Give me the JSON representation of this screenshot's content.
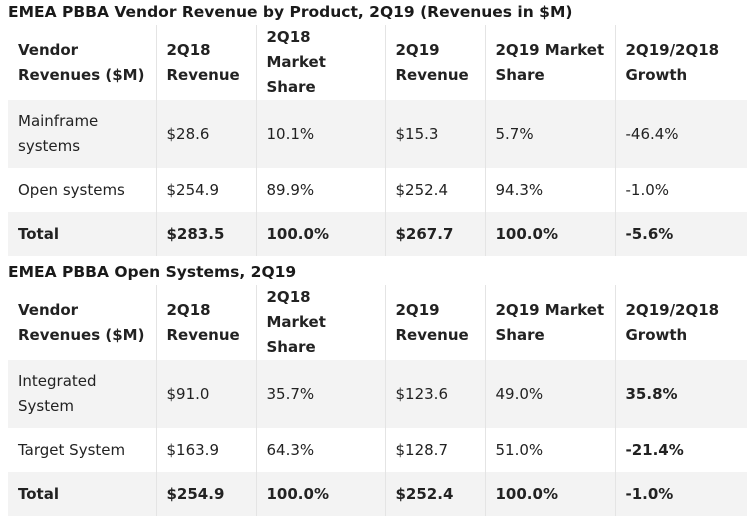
{
  "table1": {
    "title": "EMEA PBBA Vendor Revenue by Product, 2Q19 (Revenues in $M)",
    "headers": [
      "Vendor Revenues ($M)",
      "2Q18 Revenue",
      "2Q18 Market Share",
      "2Q19 Revenue",
      "2Q19 Market Share",
      "2Q19/2Q18 Growth"
    ],
    "rows": [
      [
        "Mainframe systems",
        "$28.6",
        "10.1%",
        "$15.3",
        "5.7%",
        "-46.4%"
      ],
      [
        "Open systems",
        "$254.9",
        "89.9%",
        "$252.4",
        "94.3%",
        "-1.0%"
      ],
      [
        "Total",
        "$283.5",
        "100.0%",
        "$267.7",
        "100.0%",
        "-5.6%"
      ]
    ]
  },
  "table2": {
    "title": "EMEA PBBA Open Systems, 2Q19",
    "headers": [
      "Vendor Revenues ($M)",
      "2Q18 Revenue",
      "2Q18 Market Share",
      "2Q19 Revenue",
      "2Q19 Market Share",
      "2Q19/2Q18 Growth"
    ],
    "rows": [
      [
        "Integrated System",
        "$91.0",
        "35.7%",
        "$123.6",
        "49.0%",
        "35.8%"
      ],
      [
        "Target System",
        "$163.9",
        "64.3%",
        "$128.7",
        "51.0%",
        "-21.4%"
      ],
      [
        "Total",
        "$254.9",
        "100.0%",
        "$252.4",
        "100.0%",
        "-1.0%"
      ]
    ]
  }
}
